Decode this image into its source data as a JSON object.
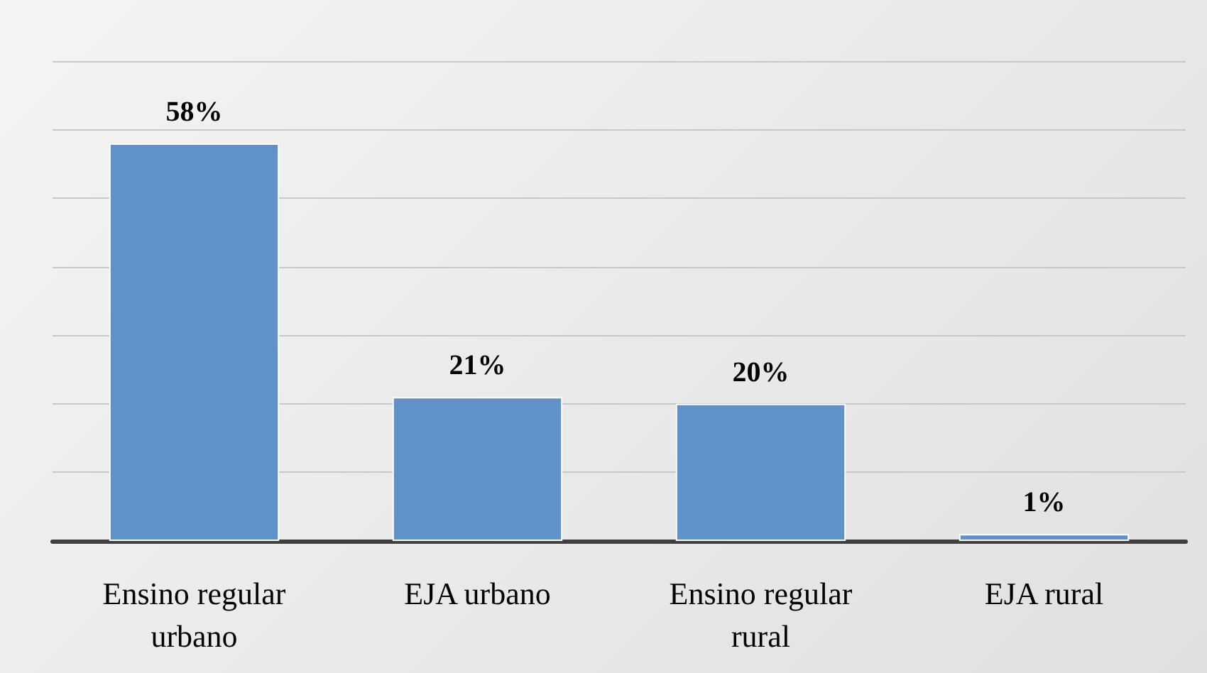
{
  "chart_data": {
    "type": "bar",
    "categories": [
      "Ensino regular urbano",
      "EJA urbano",
      "Ensino regular rural",
      "EJA rural"
    ],
    "values": [
      58,
      21,
      20,
      1
    ],
    "value_labels": [
      "58%",
      "21%",
      "20%",
      "1%"
    ],
    "color": "#6191c9",
    "ylim": [
      0,
      70
    ],
    "yticks": [
      {
        "value": 0,
        "label": null
      },
      {
        "value": 10,
        "label": null
      },
      {
        "value": 20,
        "label": null
      },
      {
        "value": 30,
        "label": null
      },
      {
        "value": 40,
        "label": null
      },
      {
        "value": 50,
        "label": null
      },
      {
        "value": 60,
        "label": null
      },
      {
        "value": 70,
        "label": null
      }
    ],
    "grid": "y",
    "tick_labels": "x"
  }
}
